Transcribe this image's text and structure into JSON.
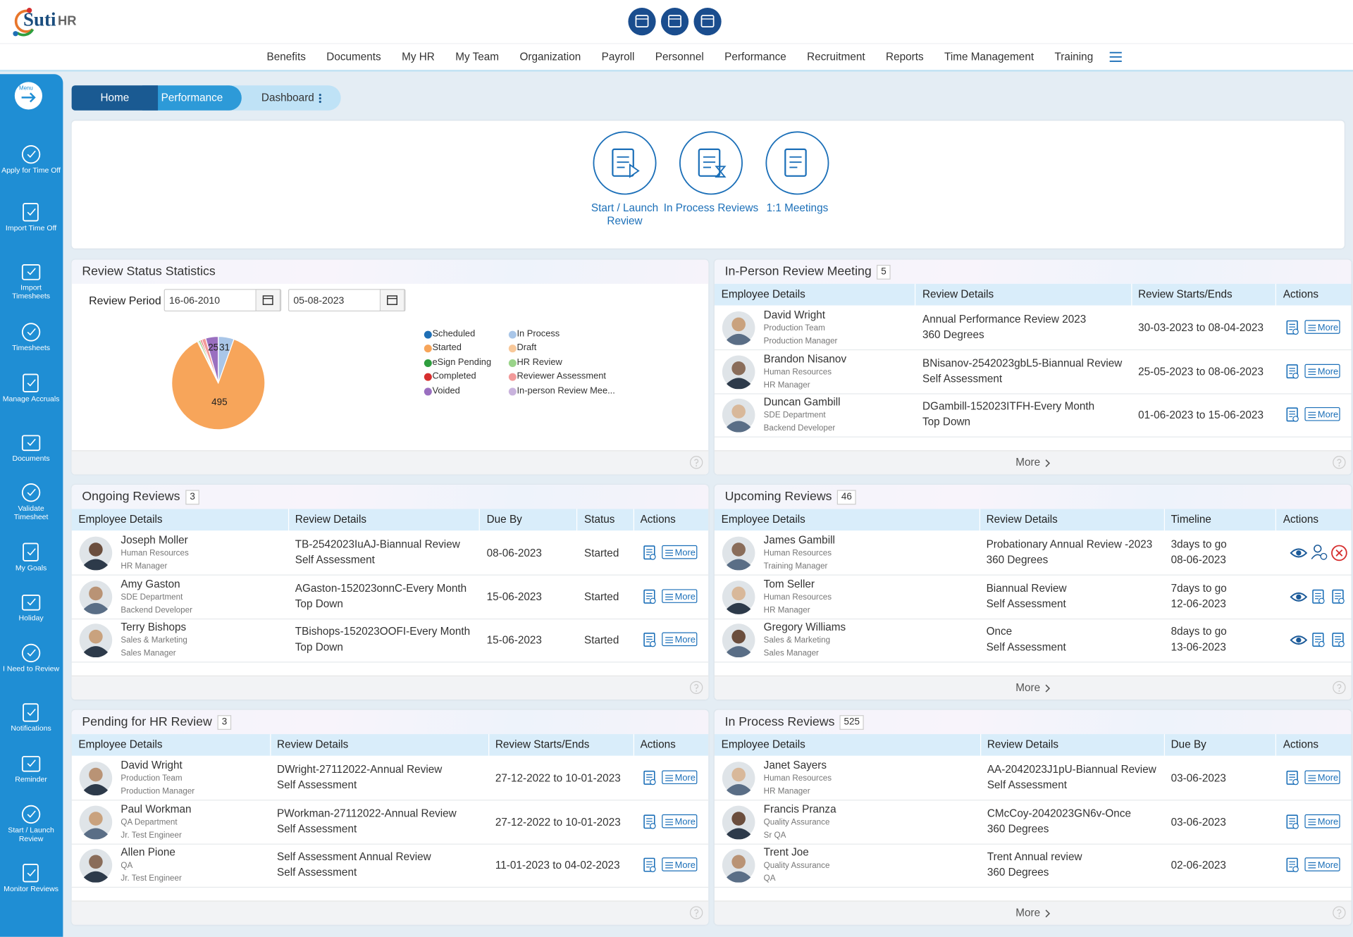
{
  "header": {
    "logo_a": "Suti",
    "logo_b": "HR"
  },
  "nav": [
    "Benefits",
    "Documents",
    "My HR",
    "My Team",
    "Organization",
    "Payroll",
    "Personnel",
    "Performance",
    "Recruitment",
    "Reports",
    "Time Management",
    "Training"
  ],
  "sidebar": {
    "menu": "Menu",
    "items": [
      "Apply for Time Off",
      "Import Time Off",
      "Import Timesheets",
      "Timesheets",
      "Manage Accruals",
      "Documents",
      "Validate Timesheet",
      "My Goals",
      "Holiday",
      "I Need to Review",
      "Notifications",
      "Reminder",
      "Start / Launch Review",
      "Monitor Reviews"
    ]
  },
  "breadcrumb": [
    "Home",
    "Performance",
    "Dashboard"
  ],
  "quick_actions": [
    "Start / Launch Review",
    "In Process Reviews",
    "1:1 Meetings"
  ],
  "review_stats": {
    "title": "Review Status Statistics",
    "period_label": "Review Period",
    "from": "16-06-2010",
    "to": "05-08-2023"
  },
  "chart_data": {
    "type": "pie",
    "categories": [
      "Scheduled",
      "In Process",
      "Started",
      "Draft",
      "eSign Pending",
      "HR Review",
      "Completed",
      "Reviewer Assessment",
      "Voided",
      "In-person Review Mee..."
    ],
    "values": [
      0,
      31,
      495,
      0,
      2,
      4,
      3,
      8,
      25,
      0
    ],
    "colors": [
      "#1f6fb5",
      "#a9c6e8",
      "#f7a55a",
      "#f8c89a",
      "#2e9e3e",
      "#9ad48a",
      "#d62f2f",
      "#f29a9a",
      "#9a6fc0",
      "#c9b3dd"
    ]
  },
  "panels": [
    {
      "title": "In-Person Review Meeting",
      "count": 5,
      "columns": [
        "Employee Details",
        "Review Details",
        "Review Starts/Ends",
        "Actions"
      ],
      "action_label": "More",
      "footer_link": "More",
      "rows": [
        {
          "name": "David Wright",
          "dept": "Production Team",
          "role": "Production Manager",
          "cells": [
            [
              "Annual Performance Review 2023",
              "360 Degrees"
            ],
            "30-03-2023 to 08-04-2023"
          ]
        },
        {
          "name": "Brandon Nisanov",
          "dept": "Human Resources",
          "role": "HR Manager",
          "cells": [
            [
              "BNisanov-2542023gbL5-Biannual Review",
              "Self Assessment"
            ],
            "25-05-2023 to 08-06-2023"
          ]
        },
        {
          "name": "Duncan Gambill",
          "dept": "SDE Department",
          "role": "Backend Developer",
          "cells": [
            [
              "DGambill-152023ITFH-Every Month",
              "Top Down"
            ],
            "01-06-2023 to 15-06-2023"
          ]
        }
      ]
    },
    {
      "title": "Ongoing Reviews",
      "count": 3,
      "columns": [
        "Employee Details",
        "Review Details",
        "Due By",
        "Status",
        "Actions"
      ],
      "action_label": "More",
      "rows": [
        {
          "name": "Joseph Moller",
          "dept": "Human Resources",
          "role": "HR Manager",
          "cells": [
            [
              "TB-2542023IuAJ-Biannual Review",
              "Self Assessment"
            ],
            "08-06-2023",
            "Started"
          ]
        },
        {
          "name": "Amy Gaston",
          "dept": "SDE Department",
          "role": "Backend Developer",
          "cells": [
            [
              "AGaston-152023onnC-Every Month",
              "Top Down"
            ],
            "15-06-2023",
            "Started"
          ]
        },
        {
          "name": "Terry Bishops",
          "dept": "Sales & Marketing",
          "role": "Sales Manager",
          "cells": [
            [
              "TBishops-152023OOFI-Every Month",
              "Top Down"
            ],
            "15-06-2023",
            "Started"
          ]
        }
      ]
    },
    {
      "title": "Upcoming Reviews",
      "count": 46,
      "columns": [
        "Employee Details",
        "Review Details",
        "Timeline",
        "Actions"
      ],
      "footer_link": "More",
      "rows": [
        {
          "name": "James Gambill",
          "dept": "Human Resources",
          "role": "Training Manager",
          "cells": [
            [
              "Probationary Annual Review -2023",
              "360 Degrees"
            ],
            [
              "3days to go",
              "08-06-2023"
            ]
          ]
        },
        {
          "name": "Tom Seller",
          "dept": "Human Resources",
          "role": "HR Manager",
          "cells": [
            [
              "Biannual Review",
              "Self Assessment"
            ],
            [
              "7days to go",
              "12-06-2023"
            ]
          ]
        },
        {
          "name": "Gregory Williams",
          "dept": "Sales & Marketing",
          "role": "Sales Manager",
          "cells": [
            [
              "Once",
              "Self Assessment"
            ],
            [
              "8days to go",
              "13-06-2023"
            ]
          ]
        }
      ]
    },
    {
      "title": "Pending for HR Review",
      "count": 3,
      "columns": [
        "Employee Details",
        "Review Details",
        "Review Starts/Ends",
        "Actions"
      ],
      "action_label": "More",
      "rows": [
        {
          "name": "David Wright",
          "dept": "Production Team",
          "role": "Production Manager",
          "cells": [
            [
              "DWright-27112022-Annual Review",
              "Self Assessment"
            ],
            "27-12-2022 to 10-01-2023"
          ]
        },
        {
          "name": "Paul Workman",
          "dept": "QA Department",
          "role": "Jr. Test Engineer",
          "cells": [
            [
              "PWorkman-27112022-Annual Review",
              "Self Assessment"
            ],
            "27-12-2022 to 10-01-2023"
          ]
        },
        {
          "name": "Allen Pione",
          "dept": "QA",
          "role": "Jr. Test Engineer",
          "cells": [
            [
              "Self Assessment Annual Review",
              "Self Assessment"
            ],
            "11-01-2023 to 04-02-2023"
          ]
        }
      ]
    },
    {
      "title": "In Process Reviews",
      "count": 525,
      "columns": [
        "Employee Details",
        "Review Details",
        "Due By",
        "Actions"
      ],
      "action_label": "More",
      "footer_link": "More",
      "rows": [
        {
          "name": "Janet Sayers",
          "dept": "Human Resources",
          "role": "HR Manager",
          "cells": [
            [
              "AA-2042023J1pU-Biannual Review",
              "Self Assessment"
            ],
            "03-06-2023"
          ]
        },
        {
          "name": "Francis Pranza",
          "dept": "Quality Assurance",
          "role": "Sr QA",
          "cells": [
            [
              "CMcCoy-2042023GN6v-Once",
              "360 Degrees"
            ],
            "03-06-2023"
          ]
        },
        {
          "name": "Trent Joe",
          "dept": "Quality Assurance",
          "role": "QA",
          "cells": [
            [
              "Trent Annual review",
              "360 Degrees"
            ],
            "02-06-2023"
          ]
        }
      ]
    }
  ]
}
